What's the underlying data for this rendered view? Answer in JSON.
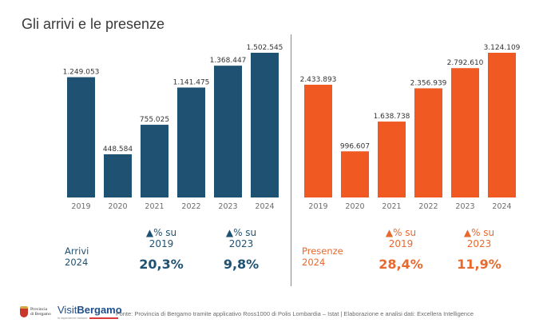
{
  "page": {
    "title": "Gli arrivi e le presenze"
  },
  "chart_data": [
    {
      "type": "bar",
      "name": "Arrivi",
      "categories": [
        "2019",
        "2020",
        "2021",
        "2022",
        "2023",
        "2024"
      ],
      "values": [
        1249053,
        448584,
        755025,
        1141475,
        1368447,
        1502545
      ],
      "value_labels": [
        "1.249.053",
        "448.584",
        "755.025",
        "1.141.475",
        "1.368.447",
        "1.502.545"
      ],
      "color": "#1f5173",
      "ylim": [
        0,
        1502545
      ],
      "grid": false,
      "title": "",
      "xlabel": "",
      "ylabel": ""
    },
    {
      "type": "bar",
      "name": "Presenze",
      "categories": [
        "2019",
        "2020",
        "2021",
        "2022",
        "2023",
        "2024"
      ],
      "values": [
        2433893,
        996607,
        1638738,
        2356939,
        2792610,
        3124109
      ],
      "value_labels": [
        "2.433.893",
        "996.607",
        "1.638.738",
        "2.356.939",
        "2.792.610",
        "3.124.109"
      ],
      "color": "#f05a22",
      "ylim": [
        0,
        3124109
      ],
      "grid": false,
      "title": "",
      "xlabel": "",
      "ylabel": ""
    }
  ],
  "kpis": {
    "arrivi": {
      "label_line1": "Arrivi",
      "label_line2": "2024",
      "color": "#1f5173",
      "items": [
        {
          "head_line1": "▲% su",
          "head_line2": "2019",
          "value": "20,3%"
        },
        {
          "head_line1": "▲% su",
          "head_line2": "2023",
          "value": "9,8%"
        }
      ]
    },
    "presenze": {
      "label_line1": "Presenze",
      "label_line2": "2024",
      "color": "#e8692e",
      "items": [
        {
          "head_line1": "▲% su",
          "head_line2": "2019",
          "value": "28,4%"
        },
        {
          "head_line1": "▲% su",
          "head_line2": "2023",
          "value": "11,9%"
        }
      ]
    }
  },
  "footer": {
    "source": "Fonte: Provincia di Bergamo tramite applicativo Ross1000 di Polis Lombardia – Istat | Elaborazione e analisi dati: Excellera Intelligence",
    "logo_provincia_line1": "Provincia",
    "logo_provincia_line2": "di Bergamo",
    "logo_visit_prefix": "Visit",
    "logo_visit_name": "Bergamo",
    "logo_visit_tagline": "le esperienze italiane"
  }
}
